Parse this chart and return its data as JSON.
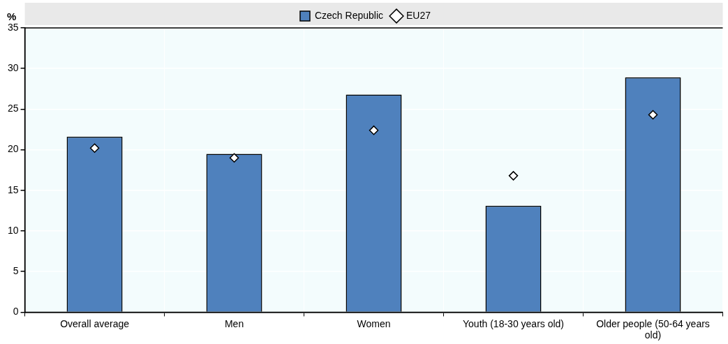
{
  "chart_data": {
    "type": "bar",
    "ylabel": "%",
    "categories": [
      "Overall average",
      "Men",
      "Women",
      "Youth (18-30 years old)",
      "Older people (50-64 years old)"
    ],
    "series": [
      {
        "name": "Czech Republic",
        "color": "#4f81bd",
        "values": [
          21.6,
          19.5,
          26.8,
          13.1,
          28.9
        ]
      },
      {
        "name": "EU27",
        "type": "scatter",
        "color": "#ffffff",
        "values": [
          20.2,
          19.0,
          22.4,
          16.8,
          24.3
        ]
      }
    ],
    "ylim": [
      0,
      35
    ],
    "yticks": [
      0,
      5,
      10,
      15,
      20,
      25,
      30,
      35
    ],
    "grid": true,
    "legend": "top",
    "marker": "diamond"
  }
}
